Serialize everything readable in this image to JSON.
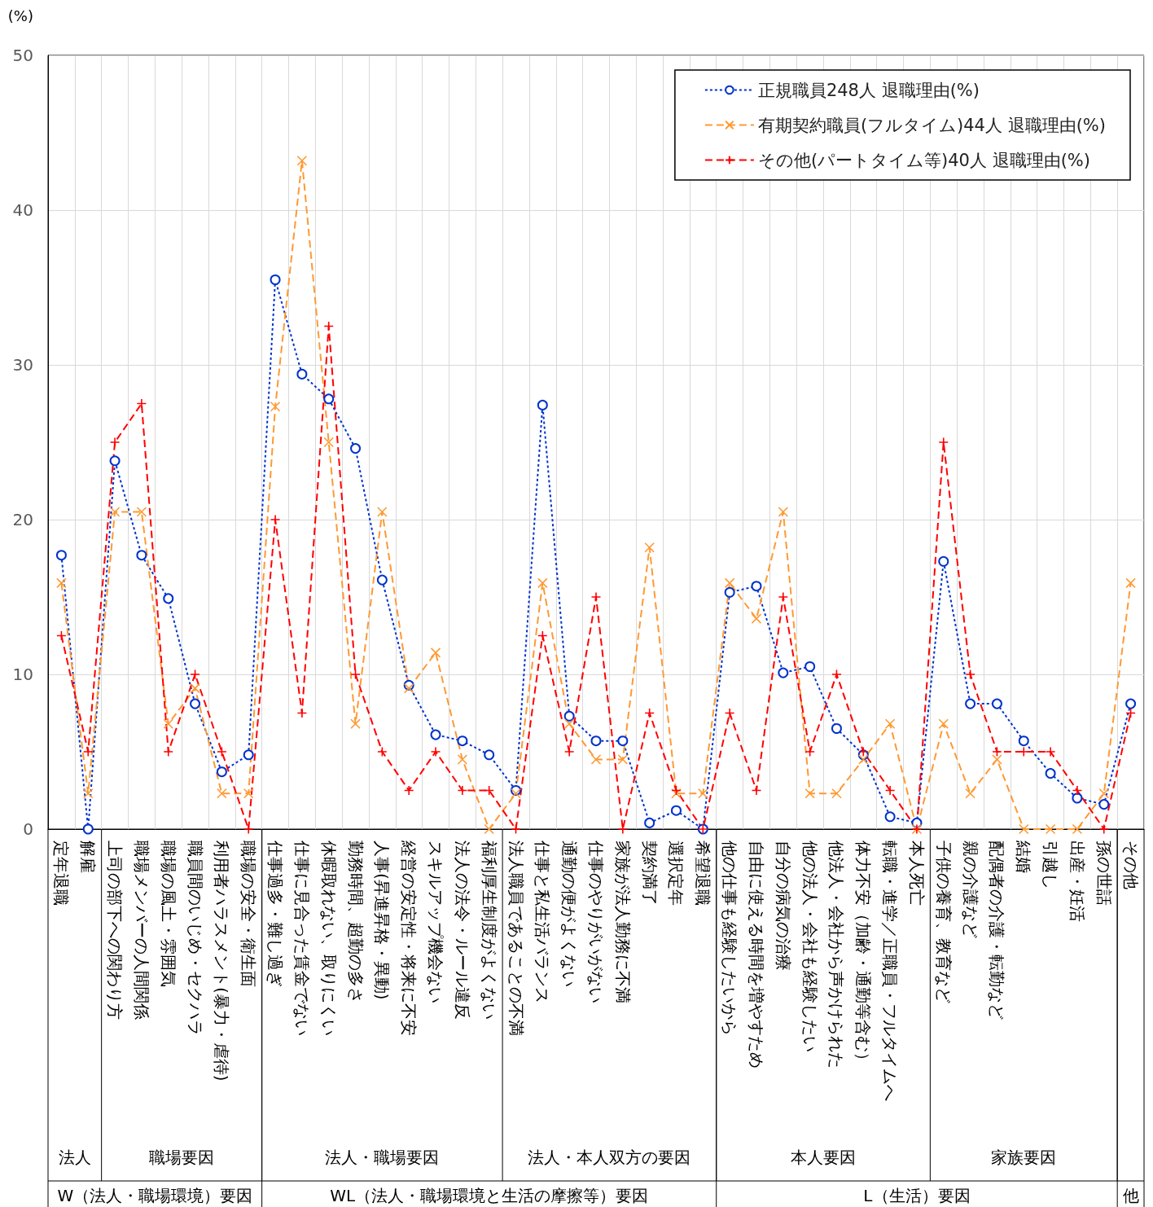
{
  "chart_data": {
    "type": "line",
    "ylabel": "(%)",
    "categories": [
      "定年退職",
      "解雇",
      "上司の部下への関わり方",
      "職場メンバーの人間関係",
      "職場の風土・雰囲気",
      "職員間のいじめ・セクハラ",
      "利用者ハラスメント(暴力・虐待)",
      "職場の安全・衛生面",
      "仕事過多・難し過ぎ",
      "仕事に見合った賃金でない",
      "休暇取れない、取りにくい",
      "勤務時間、超勤の多さ",
      "人事(昇進昇格・異動)",
      "経営の安定性・将来に不安",
      "スキルアップ機会ない",
      "法人の法令・ルール違反",
      "福利厚生制度がよくない",
      "法人職員であることの不満",
      "仕事と私生活バランス",
      "通勤の便がよくない",
      "仕事のやりがいがない",
      "家族が法人勤務に不満",
      "契約満了",
      "選択定年",
      "希望退職",
      "他の仕事も経験したいから",
      "自由に使える時間を増やすため",
      "自分の病気の治療",
      "他の法人・会社も経験したい",
      "他法人・会社から声かけられた",
      "体力不安（加齢・通勤等含む）",
      "転職・進学／正職員・フルタイムへ",
      "本人死亡",
      "子供の養育、教育など",
      "親の介護など",
      "配偶者の介護・転勤など",
      "結婚",
      "引越し",
      "出産・妊活",
      "孫の世話",
      "その他"
    ],
    "series": [
      {
        "name": "正規職員248人 退職理由(%)",
        "color": "#0033cc",
        "marker": "circle",
        "line_style": "dotted",
        "values": [
          17.7,
          0,
          23.8,
          17.7,
          14.9,
          8.1,
          3.7,
          4.8,
          35.5,
          29.4,
          27.8,
          24.6,
          16.1,
          9.3,
          6.1,
          5.7,
          4.8,
          2.5,
          27.4,
          7.3,
          5.7,
          5.7,
          0.4,
          1.2,
          0,
          15.3,
          15.7,
          10.1,
          10.5,
          6.5,
          4.8,
          0.8,
          0.4,
          17.3,
          8.1,
          8.1,
          5.7,
          3.6,
          2.0,
          1.6,
          8.1
        ]
      },
      {
        "name": "有期契約職員(フルタイム)44人 退職理由(%)",
        "color": "#ff9933",
        "marker": "cross",
        "line_style": "dashed",
        "values": [
          15.9,
          2.3,
          20.5,
          20.5,
          6.8,
          9.1,
          2.3,
          2.3,
          27.3,
          43.2,
          25.0,
          6.8,
          20.5,
          9.1,
          11.4,
          4.5,
          0,
          2.3,
          15.9,
          6.8,
          4.5,
          4.5,
          18.2,
          2.3,
          2.3,
          15.9,
          13.6,
          20.5,
          2.3,
          2.3,
          4.5,
          6.8,
          0,
          6.8,
          2.3,
          4.5,
          0,
          0,
          0,
          2.3,
          15.9
        ]
      },
      {
        "name": "その他(パートタイム等)40人 退職理由(%)",
        "color": "#ff0000",
        "marker": "plus",
        "line_style": "dashed",
        "values": [
          12.5,
          5.0,
          25.0,
          27.5,
          5.0,
          10.0,
          5.0,
          0,
          20.0,
          7.5,
          32.5,
          10.0,
          5.0,
          2.5,
          5.0,
          2.5,
          2.5,
          0,
          12.5,
          5.0,
          15.0,
          0,
          7.5,
          2.5,
          0,
          7.5,
          2.5,
          15.0,
          5.0,
          10.0,
          5.0,
          2.5,
          0,
          25.0,
          10.0,
          5.0,
          5.0,
          5.0,
          2.5,
          0,
          7.5
        ]
      }
    ],
    "ylim": [
      0,
      50
    ],
    "yticks": [
      0,
      10,
      20,
      30,
      40,
      50
    ],
    "grid": true,
    "legend": "top right",
    "annotations": [
      "法人",
      "職場要因",
      "法人・職場要因",
      "法人・本人双方の要因",
      "本人要因",
      "家族要因",
      "W（法人・職場環境）要因",
      "WL（法人・職場環境と生活の摩擦等）要因",
      "L（生活）要因",
      "他"
    ]
  }
}
